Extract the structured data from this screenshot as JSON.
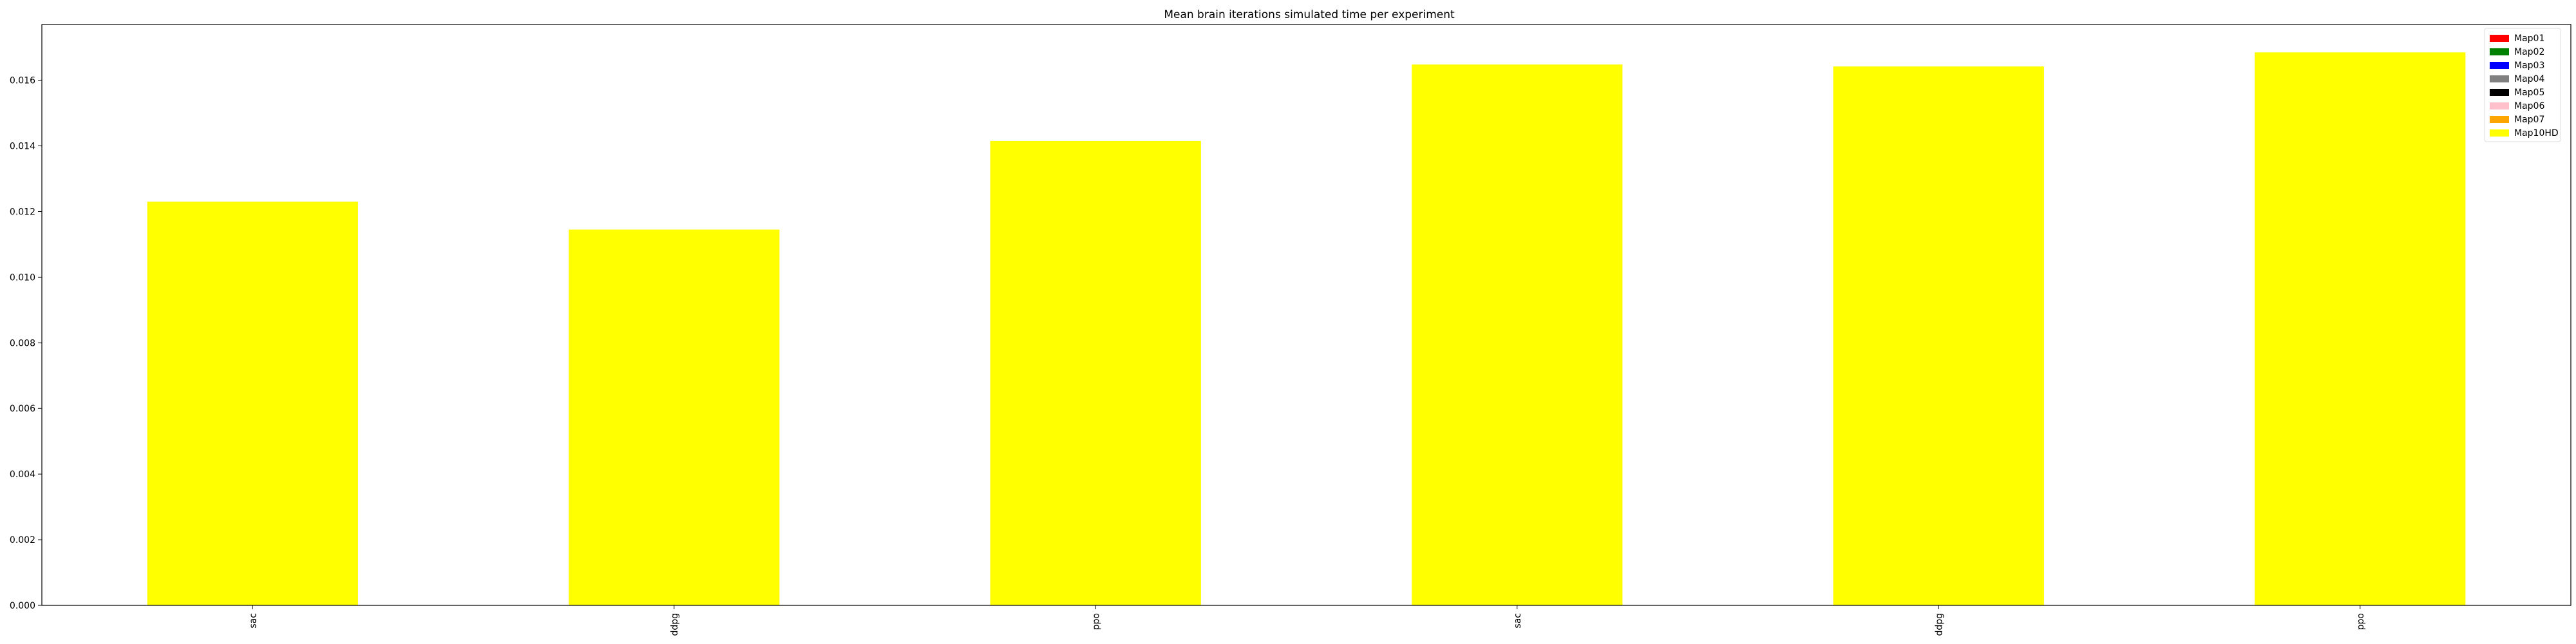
{
  "chart_data": {
    "type": "bar",
    "title": "Mean brain iterations simulated time per experiment",
    "xlabel": "",
    "ylabel": "",
    "categories": [
      "sac",
      "ddpg",
      "ppo",
      "sac",
      "ddpg",
      "ppo"
    ],
    "series": [
      {
        "name": "Map10HD",
        "color": "#ffff00",
        "values": [
          0.0123,
          0.01145,
          0.01415,
          0.01648,
          0.01642,
          0.01685
        ]
      }
    ],
    "ylim": [
      0,
      0.0177
    ],
    "yticks": [
      "0.000",
      "0.002",
      "0.004",
      "0.006",
      "0.008",
      "0.010",
      "0.012",
      "0.014",
      "0.016"
    ],
    "ytick_values": [
      0,
      0.002,
      0.004,
      0.006,
      0.008,
      0.01,
      0.012,
      0.014,
      0.016
    ],
    "grid": false,
    "legend_position": "top-right",
    "legend": [
      {
        "label": "Map01",
        "color": "#ff0000"
      },
      {
        "label": "Map02",
        "color": "#008000"
      },
      {
        "label": "Map03",
        "color": "#0000ff"
      },
      {
        "label": "Map04",
        "color": "#808080"
      },
      {
        "label": "Map05",
        "color": "#000000"
      },
      {
        "label": "Map06",
        "color": "#ffc0cb"
      },
      {
        "label": "Map07",
        "color": "#ffa500"
      },
      {
        "label": "Map10HD",
        "color": "#ffff00"
      }
    ]
  }
}
